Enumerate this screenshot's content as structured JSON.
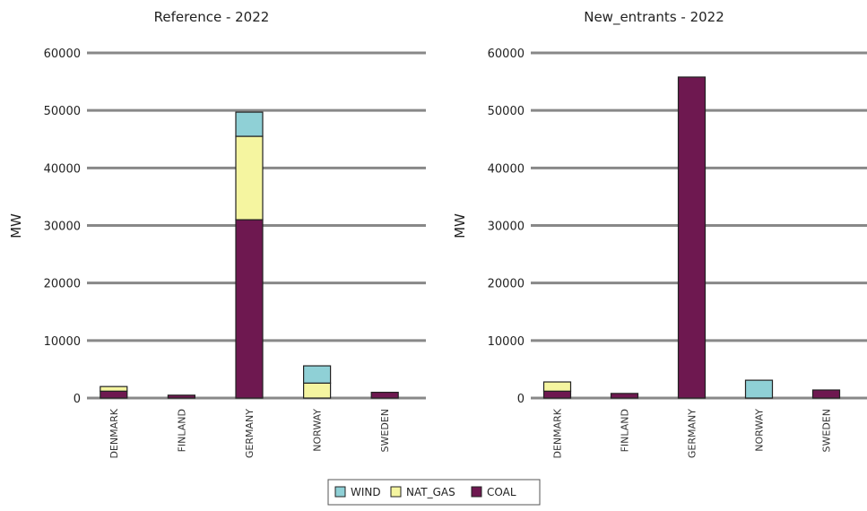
{
  "chart_data": [
    {
      "type": "bar",
      "stacked": true,
      "title": "Reference - 2022",
      "y_label": "MW",
      "categories": [
        "DENMARK",
        "FINLAND",
        "GERMANY",
        "NORWAY",
        "SWEDEN"
      ],
      "series": [
        {
          "name": "WIND",
          "color": "#8fd0d6",
          "values": [
            0,
            0,
            4200,
            3000,
            0
          ]
        },
        {
          "name": "NAT_GAS",
          "color": "#f5f5a0",
          "values": [
            800,
            0,
            14500,
            2600,
            0
          ]
        },
        {
          "name": "COAL",
          "color": "#6e1850",
          "values": [
            1200,
            500,
            31000,
            0,
            1000
          ]
        }
      ],
      "ylim": [
        0,
        60000
      ],
      "yticks": [
        0,
        10000,
        20000,
        30000,
        40000,
        50000,
        60000
      ],
      "grid": true
    },
    {
      "type": "bar",
      "stacked": true,
      "title": "New_entrants - 2022",
      "y_label": "MW",
      "categories": [
        "DENMARK",
        "FINLAND",
        "GERMANY",
        "NORWAY",
        "SWEDEN"
      ],
      "series": [
        {
          "name": "WIND",
          "color": "#8fd0d6",
          "values": [
            0,
            0,
            0,
            3100,
            0
          ]
        },
        {
          "name": "NAT_GAS",
          "color": "#f5f5a0",
          "values": [
            1600,
            0,
            0,
            0,
            0
          ]
        },
        {
          "name": "COAL",
          "color": "#6e1850",
          "values": [
            1200,
            800,
            55800,
            0,
            1400
          ]
        }
      ],
      "ylim": [
        0,
        60000
      ],
      "yticks": [
        0,
        10000,
        20000,
        30000,
        40000,
        50000,
        60000
      ],
      "grid": true
    }
  ]
}
